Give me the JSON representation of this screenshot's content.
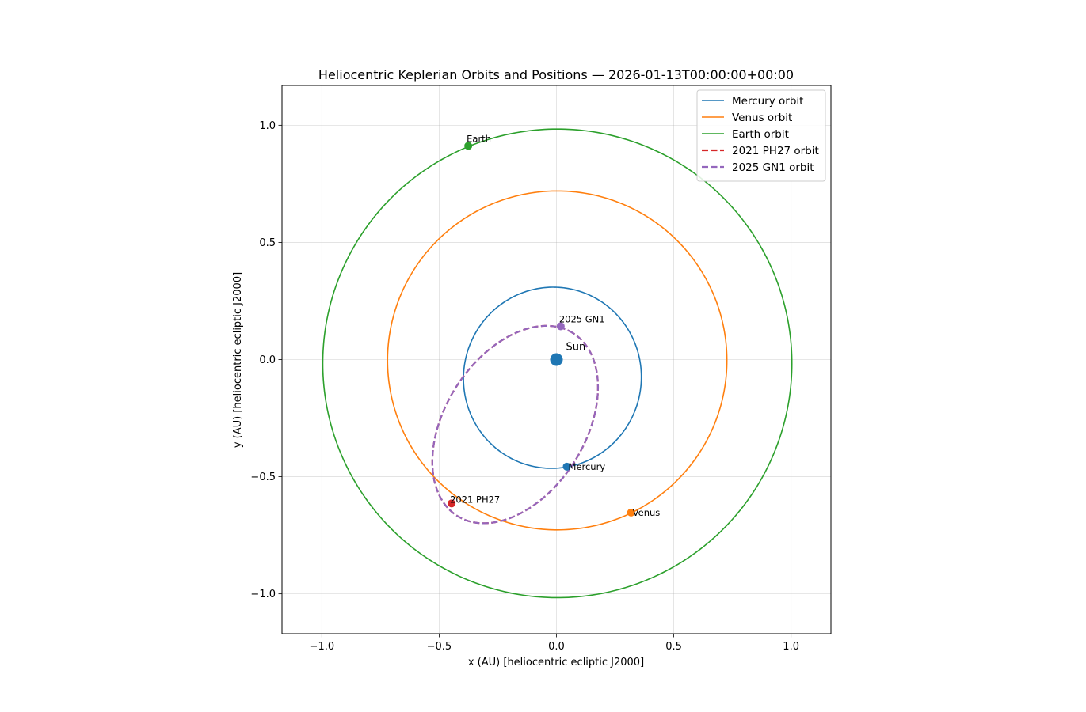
{
  "chart_data": {
    "type": "scatter",
    "title": "Heliocentric Keplerian Orbits and Positions — 2026-01-13T00:00:00+00:00",
    "xlabel": "x (AU)  [heliocentric ecliptic J2000]",
    "ylabel": "y (AU)  [heliocentric ecliptic J2000]",
    "xlim": [
      -1.17,
      1.17
    ],
    "ylim": [
      -1.17,
      1.17
    ],
    "xticks": [
      -1.0,
      -0.5,
      0.0,
      0.5,
      1.0
    ],
    "yticks": [
      -1.0,
      -0.5,
      0.0,
      0.5,
      1.0
    ],
    "xtick_labels": [
      "−1.0",
      "−0.5",
      "0.0",
      "0.5",
      "1.0"
    ],
    "ytick_labels": [
      "−1.0",
      "−0.5",
      "0.0",
      "0.5",
      "1.0"
    ],
    "grid": true,
    "legend_position": "top-right",
    "sun": {
      "label": "Sun",
      "x": 0.0,
      "y": 0.0,
      "color": "#1f77b4"
    },
    "orbits": [
      {
        "name": "Mercury orbit",
        "color": "#1f77b4",
        "dashed": false,
        "a": 0.387,
        "e": 0.2056,
        "w_deg": 77.46,
        "tilt": 1.0
      },
      {
        "name": "Venus orbit",
        "color": "#ff7f0e",
        "dashed": false,
        "a": 0.7233,
        "e": 0.0068,
        "w_deg": 131.5,
        "tilt": 1.0
      },
      {
        "name": "Earth orbit",
        "color": "#2ca02c",
        "dashed": false,
        "a": 1.0,
        "e": 0.0167,
        "w_deg": 102.9,
        "tilt": 1.0
      },
      {
        "name": "2021 PH27 orbit",
        "color": "#d62728",
        "dashed": true,
        "a": 0.4616,
        "e": 0.7116,
        "w_deg": 57.6,
        "tilt": 0.92
      },
      {
        "name": "2025 GN1 orbit",
        "color": "#9467bd",
        "dashed": true,
        "a": 0.4616,
        "e": 0.7116,
        "w_deg": 57.6,
        "tilt": 0.92
      }
    ],
    "positions": [
      {
        "name": "Mercury",
        "x": 0.044,
        "y": -0.457,
        "color": "#1f77b4"
      },
      {
        "name": "Venus",
        "x": 0.318,
        "y": -0.653,
        "color": "#ff7f0e"
      },
      {
        "name": "Earth",
        "x": -0.376,
        "y": 0.912,
        "color": "#2ca02c"
      },
      {
        "name": "2021 PH27",
        "x": -0.447,
        "y": -0.614,
        "color": "#d62728"
      },
      {
        "name": "2025 GN1",
        "x": 0.018,
        "y": 0.142,
        "color": "#9467bd"
      }
    ]
  }
}
